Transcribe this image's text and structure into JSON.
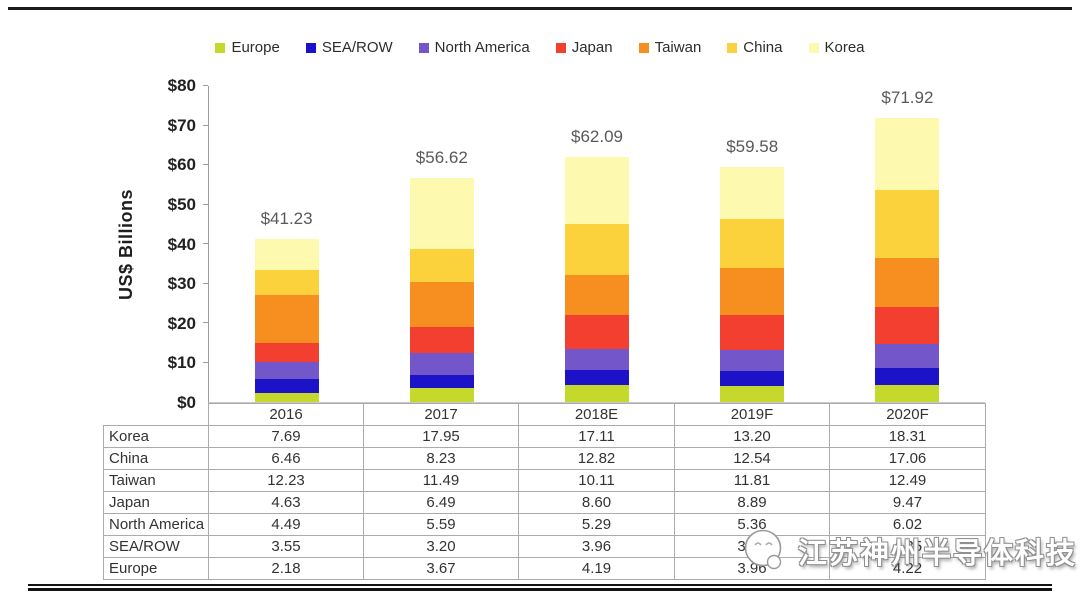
{
  "chart_data": {
    "type": "bar",
    "stacked": true,
    "title": "",
    "xlabel": "",
    "ylabel": "US$ Billions",
    "ylim": [
      0,
      80
    ],
    "yticks": [
      "$0",
      "$10",
      "$20",
      "$30",
      "$40",
      "$50",
      "$60",
      "$70",
      "$80"
    ],
    "grid": false,
    "legend_position": "top",
    "categories": [
      "2016",
      "2017",
      "2018E",
      "2019F",
      "2020F"
    ],
    "series": [
      {
        "name": "Europe",
        "color": "#c5d92d",
        "values": [
          2.18,
          3.67,
          4.19,
          3.96,
          4.22
        ]
      },
      {
        "name": "SEA/ROW",
        "color": "#1c13c9",
        "values": [
          3.55,
          3.2,
          3.96,
          3.82,
          4.35
        ]
      },
      {
        "name": "North America",
        "color": "#7456cb",
        "values": [
          4.49,
          5.59,
          5.29,
          5.36,
          6.02
        ]
      },
      {
        "name": "Japan",
        "color": "#f23f30",
        "values": [
          4.63,
          6.49,
          8.6,
          8.89,
          9.47
        ]
      },
      {
        "name": "Taiwan",
        "color": "#f78e20",
        "values": [
          12.23,
          11.49,
          10.11,
          11.81,
          12.49
        ]
      },
      {
        "name": "China",
        "color": "#fcd23c",
        "values": [
          6.46,
          8.23,
          12.82,
          12.54,
          17.06
        ]
      },
      {
        "name": "Korea",
        "color": "#fdf9ae",
        "values": [
          7.69,
          17.95,
          17.11,
          13.2,
          18.31
        ]
      }
    ],
    "totals": [
      "$41.23",
      "$56.62",
      "$62.09",
      "$59.58",
      "$71.92"
    ]
  },
  "table": {
    "col_headers": [
      "2016",
      "2017",
      "2018E",
      "2019F",
      "2020F"
    ],
    "rows": [
      {
        "label": "Korea",
        "values": [
          "7.69",
          "17.95",
          "17.11",
          "13.20",
          "18.31"
        ]
      },
      {
        "label": "China",
        "values": [
          "6.46",
          "8.23",
          "12.82",
          "12.54",
          "17.06"
        ]
      },
      {
        "label": "Taiwan",
        "values": [
          "12.23",
          "11.49",
          "10.11",
          "11.81",
          "12.49"
        ]
      },
      {
        "label": "Japan",
        "values": [
          "4.63",
          "6.49",
          "8.60",
          "8.89",
          "9.47"
        ]
      },
      {
        "label": "North America",
        "values": [
          "4.49",
          "5.59",
          "5.29",
          "5.36",
          "6.02"
        ]
      },
      {
        "label": "SEA/ROW",
        "values": [
          "3.55",
          "3.20",
          "3.96",
          "3.82",
          "4.35"
        ]
      },
      {
        "label": "Europe",
        "values": [
          "2.18",
          "3.67",
          "4.19",
          "3.96",
          "4.22"
        ]
      }
    ]
  },
  "watermark": {
    "text": "江苏神州半导体科技"
  }
}
